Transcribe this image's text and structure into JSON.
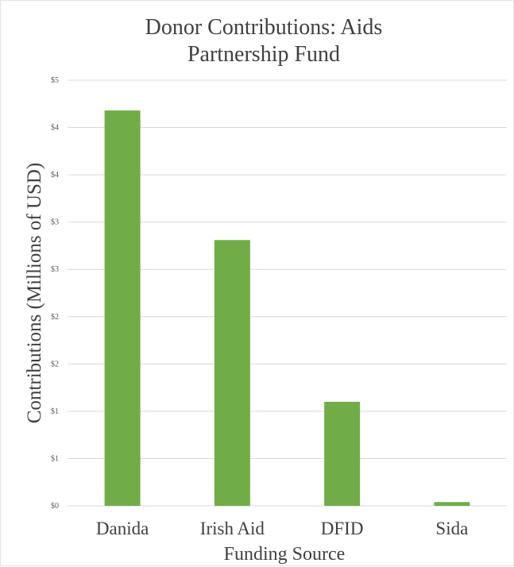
{
  "chart_data": {
    "type": "bar",
    "title_lines": [
      "Donor Contributions: Aids",
      "Partnership Fund"
    ],
    "xlabel": "Funding Source",
    "ylabel": "Contributions (Millions of USD)",
    "categories": [
      "Danida",
      "Irish Aid",
      "DFID",
      "Sida"
    ],
    "values": [
      4.18,
      2.81,
      1.1,
      0.04
    ],
    "ylim": [
      0,
      4.5
    ],
    "y_ticks": [
      0,
      0.5,
      1,
      1.5,
      2,
      2.5,
      3,
      3.5,
      4,
      4.5
    ],
    "y_tick_labels": [
      "$0",
      "$1",
      "$1",
      "$2",
      "$2",
      "$3",
      "$3",
      "$4",
      "$4",
      "$5"
    ],
    "bar_color": "#70ad47",
    "grid": true,
    "legend": "none"
  }
}
